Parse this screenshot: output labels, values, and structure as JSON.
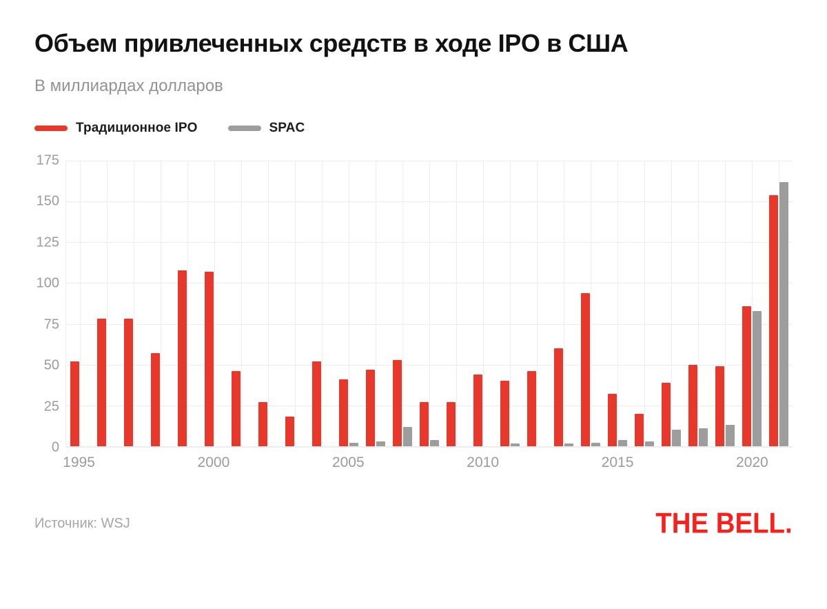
{
  "header": {
    "title": "Объем привлеченных средств в ходе IPO в США",
    "subtitle": "В миллиардах долларов"
  },
  "legend": {
    "items": [
      {
        "label": "Традиционное IPO",
        "color": "#e8382c"
      },
      {
        "label": "SPAC",
        "color": "#9d9d9d"
      }
    ]
  },
  "chart_data": {
    "type": "bar",
    "title": "Объем привлеченных средств в ходе IPO в США",
    "subtitle": "В миллиардах долларов",
    "unit": "billions USD",
    "categories": [
      1995,
      1996,
      1997,
      1998,
      1999,
      2000,
      2001,
      2002,
      2003,
      2004,
      2005,
      2006,
      2007,
      2008,
      2009,
      2010,
      2011,
      2012,
      2013,
      2014,
      2015,
      2016,
      2017,
      2018,
      2019,
      2020,
      2021
    ],
    "series": [
      {
        "name": "Традиционное IPO",
        "color": "#e8382c",
        "values": [
          52,
          78,
          78,
          57,
          108,
          107,
          46,
          27,
          18,
          52,
          41,
          47,
          53,
          27,
          27,
          44,
          40,
          46,
          60,
          94,
          32,
          20,
          39,
          50,
          49,
          86,
          154
        ]
      },
      {
        "name": "SPAC",
        "color": "#9d9d9d",
        "values": [
          0,
          0,
          0,
          0,
          0,
          0,
          0,
          0,
          0,
          0,
          2,
          3,
          12,
          4,
          0,
          0,
          1.5,
          0,
          1.5,
          2,
          4,
          3,
          10,
          11,
          13,
          83,
          162
        ]
      }
    ],
    "ylim": [
      0,
      175
    ],
    "yticks": [
      0,
      25,
      50,
      75,
      100,
      125,
      150,
      175
    ],
    "xticks": [
      1995,
      2000,
      2005,
      2010,
      2015,
      2020
    ],
    "grid": "horizontal-and-vertical",
    "legend_position": "top-left",
    "colors": {
      "grid": "#ececec",
      "axis_text": "#9b9b9b"
    }
  },
  "footer": {
    "source": "Источник: WSJ",
    "logo": "THE BELL.",
    "logo_color": "#f8201a"
  }
}
